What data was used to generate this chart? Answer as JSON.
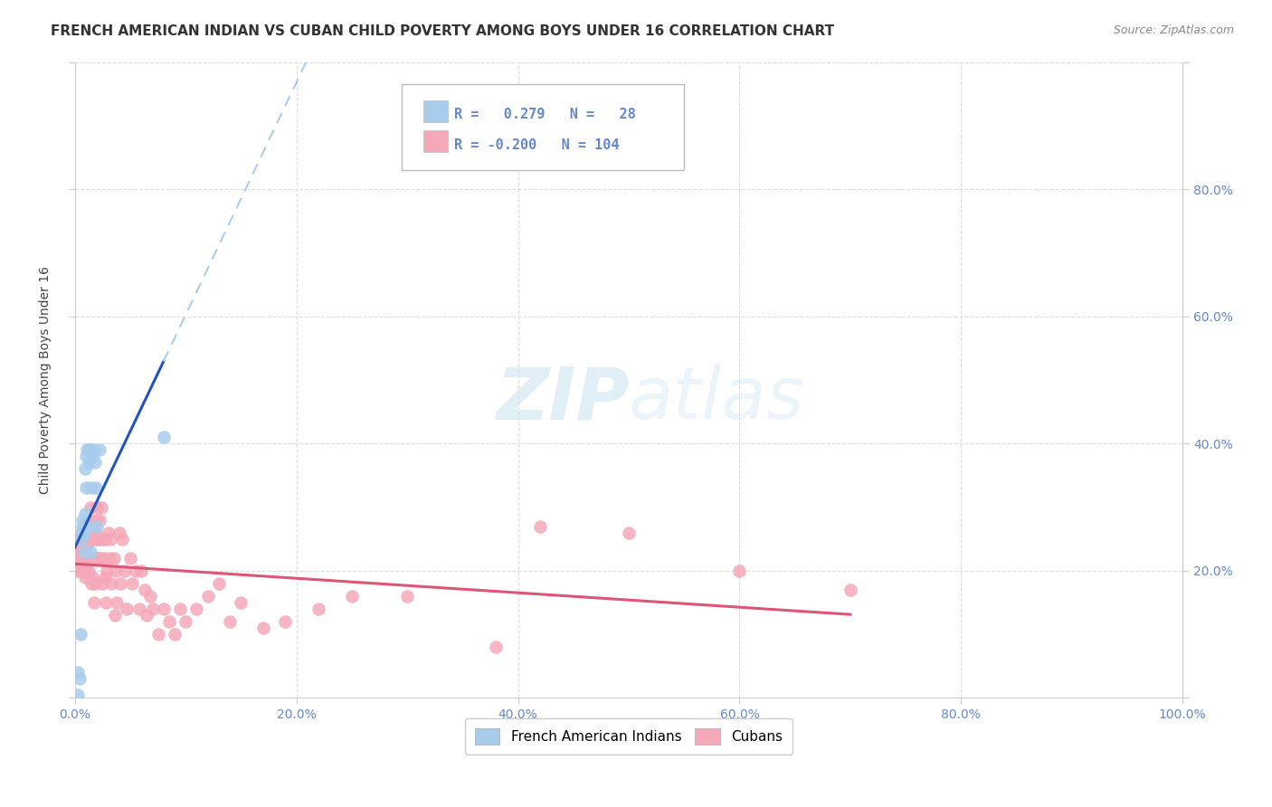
{
  "title": "FRENCH AMERICAN INDIAN VS CUBAN CHILD POVERTY AMONG BOYS UNDER 16 CORRELATION CHART",
  "source": "Source: ZipAtlas.com",
  "ylabel": "Child Poverty Among Boys Under 16",
  "xlim": [
    0,
    1.0
  ],
  "ylim": [
    0,
    1.0
  ],
  "xticks": [
    0.0,
    0.2,
    0.4,
    0.6,
    0.8,
    1.0
  ],
  "yticks": [
    0.0,
    0.2,
    0.4,
    0.6,
    0.8,
    1.0
  ],
  "xticklabels": [
    "0.0%",
    "20.0%",
    "40.0%",
    "60.0%",
    "80.0%",
    "100.0%"
  ],
  "left_yticklabels": [
    "",
    "",
    "",
    "",
    "",
    ""
  ],
  "right_yticklabels": [
    "",
    "20.0%",
    "40.0%",
    "60.0%",
    "80.0%",
    ""
  ],
  "legend_labels": [
    "French American Indians",
    "Cubans"
  ],
  "color_blue": "#A8CCEC",
  "color_pink": "#F4A8B8",
  "line_blue": "#2255BB",
  "line_pink": "#DD5577",
  "line_dashed_color": "#AACCEE",
  "watermark_zip": "ZIP",
  "watermark_atlas": "atlas",
  "background_color": "#FFFFFF",
  "grid_color": "#DDDDDD",
  "tick_color": "#6688CC",
  "french_x": [
    0.003,
    0.003,
    0.004,
    0.005,
    0.006,
    0.006,
    0.007,
    0.007,
    0.008,
    0.008,
    0.009,
    0.009,
    0.01,
    0.01,
    0.011,
    0.011,
    0.012,
    0.012,
    0.013,
    0.014,
    0.015,
    0.016,
    0.017,
    0.018,
    0.019,
    0.02,
    0.022,
    0.08
  ],
  "french_y": [
    0.005,
    0.04,
    0.03,
    0.1,
    0.25,
    0.26,
    0.28,
    0.27,
    0.26,
    0.23,
    0.36,
    0.29,
    0.33,
    0.38,
    0.39,
    0.27,
    0.39,
    0.37,
    0.39,
    0.23,
    0.33,
    0.38,
    0.39,
    0.37,
    0.33,
    0.27,
    0.39,
    0.41
  ],
  "cuban_x": [
    0.001,
    0.002,
    0.002,
    0.003,
    0.003,
    0.003,
    0.004,
    0.004,
    0.004,
    0.005,
    0.005,
    0.005,
    0.006,
    0.006,
    0.006,
    0.007,
    0.007,
    0.007,
    0.008,
    0.008,
    0.008,
    0.009,
    0.009,
    0.009,
    0.01,
    0.01,
    0.01,
    0.011,
    0.011,
    0.012,
    0.012,
    0.012,
    0.013,
    0.013,
    0.013,
    0.014,
    0.015,
    0.015,
    0.016,
    0.016,
    0.017,
    0.017,
    0.018,
    0.018,
    0.019,
    0.019,
    0.02,
    0.02,
    0.02,
    0.021,
    0.022,
    0.022,
    0.023,
    0.024,
    0.025,
    0.025,
    0.026,
    0.027,
    0.027,
    0.028,
    0.029,
    0.03,
    0.031,
    0.032,
    0.033,
    0.035,
    0.036,
    0.037,
    0.038,
    0.04,
    0.041,
    0.043,
    0.045,
    0.047,
    0.05,
    0.052,
    0.055,
    0.058,
    0.06,
    0.063,
    0.065,
    0.068,
    0.07,
    0.075,
    0.08,
    0.085,
    0.09,
    0.095,
    0.1,
    0.11,
    0.12,
    0.13,
    0.14,
    0.15,
    0.17,
    0.19,
    0.22,
    0.25,
    0.3,
    0.38,
    0.42,
    0.5,
    0.6,
    0.7
  ],
  "cuban_y": [
    0.22,
    0.21,
    0.24,
    0.22,
    0.25,
    0.2,
    0.23,
    0.22,
    0.25,
    0.22,
    0.2,
    0.25,
    0.22,
    0.24,
    0.2,
    0.22,
    0.25,
    0.2,
    0.22,
    0.24,
    0.2,
    0.22,
    0.24,
    0.19,
    0.22,
    0.2,
    0.25,
    0.22,
    0.24,
    0.2,
    0.22,
    0.25,
    0.22,
    0.28,
    0.22,
    0.3,
    0.18,
    0.25,
    0.22,
    0.19,
    0.25,
    0.15,
    0.22,
    0.18,
    0.26,
    0.28,
    0.22,
    0.25,
    0.3,
    0.22,
    0.25,
    0.28,
    0.22,
    0.3,
    0.18,
    0.25,
    0.22,
    0.19,
    0.25,
    0.15,
    0.2,
    0.26,
    0.22,
    0.25,
    0.18,
    0.22,
    0.13,
    0.2,
    0.15,
    0.26,
    0.18,
    0.25,
    0.2,
    0.14,
    0.22,
    0.18,
    0.2,
    0.14,
    0.2,
    0.17,
    0.13,
    0.16,
    0.14,
    0.1,
    0.14,
    0.12,
    0.1,
    0.14,
    0.12,
    0.14,
    0.16,
    0.18,
    0.12,
    0.15,
    0.11,
    0.12,
    0.14,
    0.16,
    0.16,
    0.08,
    0.27,
    0.26,
    0.2,
    0.17
  ],
  "title_fontsize": 11,
  "axis_label_fontsize": 10,
  "tick_fontsize": 10,
  "legend_fontsize": 11,
  "r_blue": "0.279",
  "n_blue": "28",
  "r_pink": "-0.200",
  "n_pink": "104"
}
